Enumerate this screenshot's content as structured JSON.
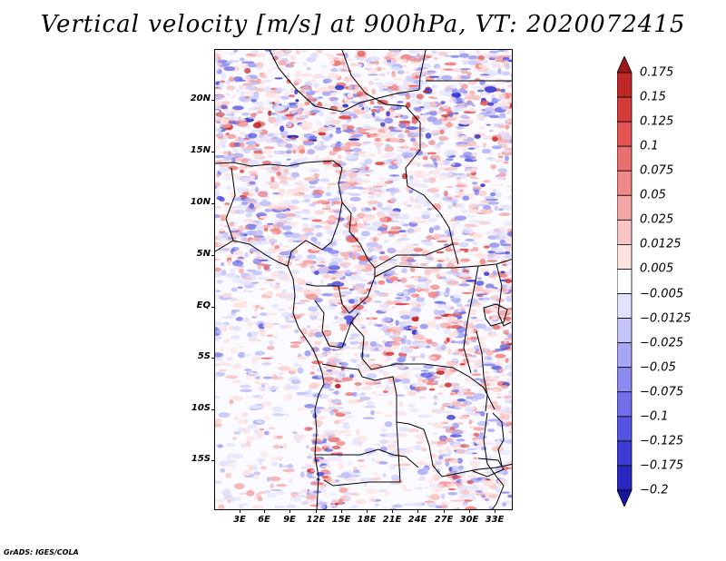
{
  "title": "Vertical velocity [m/s] at 900hPa, VT: 2020072415",
  "credit": "GrADS: IGES/COLA",
  "map": {
    "lat_labels": [
      "20N",
      "15N",
      "10N",
      "5N",
      "EQ",
      "5S",
      "10S",
      "15S"
    ],
    "lon_labels": [
      "3E",
      "6E",
      "9E",
      "12E",
      "15E",
      "18E",
      "21E",
      "24E",
      "27E",
      "30E",
      "33E"
    ]
  },
  "colorbar": {
    "levels": [
      "0.175",
      "0.15",
      "0.125",
      "0.1",
      "0.075",
      "0.05",
      "0.025",
      "0.0125",
      "0.005",
      "−0.005",
      "−0.0125",
      "−0.025",
      "−0.05",
      "−0.075",
      "−0.1",
      "−0.125",
      "−0.175",
      "−0.2"
    ],
    "colors": [
      "#a01616",
      "#c02828",
      "#d43c3c",
      "#e25454",
      "#ea7070",
      "#f08a8a",
      "#f5a6a6",
      "#f9c4c4",
      "#fde2e2",
      "#ffffff",
      "#e2e2fd",
      "#c4c4f9",
      "#a6a6f5",
      "#8a8af0",
      "#7070ea",
      "#5454e2",
      "#3c3cd4",
      "#2828c0",
      "#16169e"
    ]
  }
}
